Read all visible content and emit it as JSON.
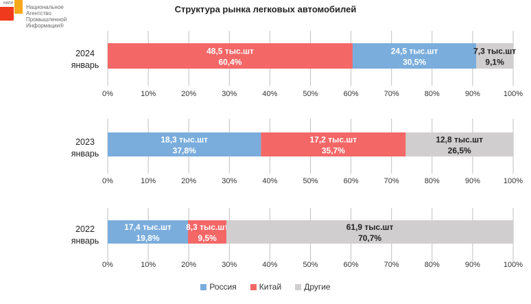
{
  "logo": {
    "abbr": "НАПИ",
    "lines": [
      "Национальное",
      "Агентство",
      "Промышленной",
      "Информации®"
    ]
  },
  "chart_data": {
    "type": "bar",
    "orientation": "horizontal-stacked-100",
    "title": "Структура рынка легковых автомобилей",
    "xlim": [
      0,
      100
    ],
    "ticks": [
      "0%",
      "10%",
      "20%",
      "30%",
      "40%",
      "50%",
      "60%",
      "70%",
      "80%",
      "90%",
      "100%"
    ],
    "legend": {
      "position": "bottom",
      "entries": [
        {
          "name": "Россия",
          "color": "#7aaddc"
        },
        {
          "name": "Китай",
          "color": "#f46767"
        },
        {
          "name": "Другие",
          "color": "#d0cece"
        }
      ]
    },
    "panels": [
      {
        "year": "2024",
        "month": "январь",
        "segments": [
          {
            "series": "Китай",
            "color": "#f46767",
            "percent": 60.4,
            "volume_label": "48,5 тыс.шт",
            "percent_label": "60,4%",
            "text_color": "#ffffff"
          },
          {
            "series": "Россия",
            "color": "#7aaddc",
            "percent": 30.5,
            "volume_label": "24,5 тыс.шт",
            "percent_label": "30,5%",
            "text_color": "#ffffff"
          },
          {
            "series": "Другие",
            "color": "#d0cece",
            "percent": 9.1,
            "volume_label": "7,3 тыс.шт",
            "percent_label": "9,1%",
            "text_color": "#222222"
          }
        ]
      },
      {
        "year": "2023",
        "month": "январь",
        "segments": [
          {
            "series": "Россия",
            "color": "#7aaddc",
            "percent": 37.8,
            "volume_label": "18,3 тыс.шт",
            "percent_label": "37,8%",
            "text_color": "#ffffff"
          },
          {
            "series": "Китай",
            "color": "#f46767",
            "percent": 35.7,
            "volume_label": "17,2 тыс.шт",
            "percent_label": "35,7%",
            "text_color": "#ffffff"
          },
          {
            "series": "Другие",
            "color": "#d0cece",
            "percent": 26.5,
            "volume_label": "12,8 тыс.шт",
            "percent_label": "26,5%",
            "text_color": "#222222"
          }
        ]
      },
      {
        "year": "2022",
        "month": "январь",
        "segments": [
          {
            "series": "Россия",
            "color": "#7aaddc",
            "percent": 19.8,
            "volume_label": "17,4 тыс.шт",
            "percent_label": "19,8%",
            "text_color": "#ffffff"
          },
          {
            "series": "Китай",
            "color": "#f46767",
            "percent": 9.5,
            "volume_label": "8,3 тыс.шт",
            "percent_label": "9,5%",
            "text_color": "#ffffff"
          },
          {
            "series": "Другие",
            "color": "#d0cece",
            "percent": 70.7,
            "volume_label": "61,9 тыс.шт",
            "percent_label": "70,7%",
            "text_color": "#222222"
          }
        ]
      }
    ]
  }
}
